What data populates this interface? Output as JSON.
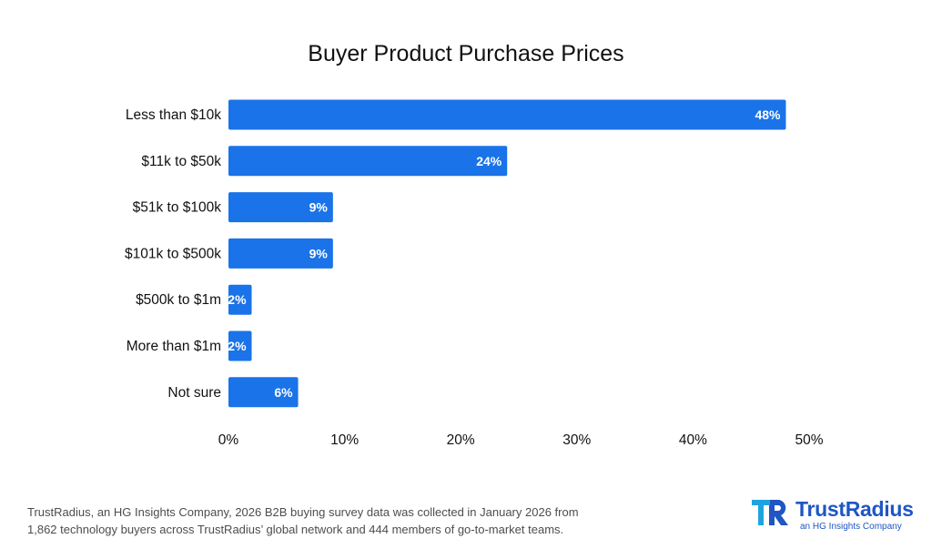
{
  "chart_data": {
    "type": "bar",
    "orientation": "horizontal",
    "title": "Buyer Product Purchase Prices",
    "categories": [
      "Less than $10k",
      "$11k to $50k",
      "$51k to $100k",
      "$101k to $500k",
      "$500k to $1m",
      "More than $1m",
      "Not sure"
    ],
    "values": [
      48,
      24,
      9,
      9,
      2,
      2,
      6
    ],
    "value_labels": [
      "48%",
      "24%",
      "9%",
      "9%",
      "2%",
      "2%",
      "6%"
    ],
    "xlim": [
      0,
      50
    ],
    "x_ticks": [
      0,
      10,
      20,
      30,
      40,
      50
    ],
    "x_tick_labels": [
      "0%",
      "10%",
      "20%",
      "30%",
      "40%",
      "50%"
    ],
    "bar_color": "#1a73e8",
    "grid": false,
    "legend": "none"
  },
  "footnote": {
    "line1": "TrustRadius, an HG Insights Company, 2026 B2B buying survey data was collected in January 2026 from",
    "line2": "1,862 technology buyers across TrustRadius’ global network and 444 members of go-to-market teams."
  },
  "brand": {
    "name": "TrustRadius",
    "tagline": "an HG Insights Company",
    "logo_icon": "trustradius-logo-icon",
    "color": "#1f56c4"
  }
}
